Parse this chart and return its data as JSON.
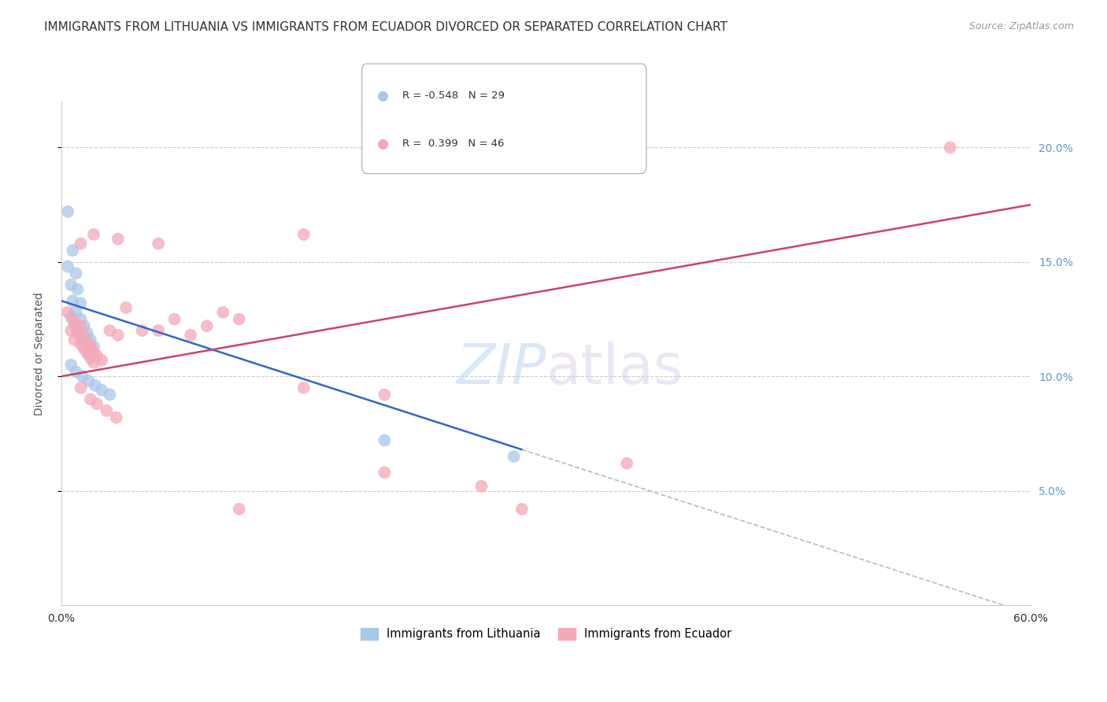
{
  "title": "IMMIGRANTS FROM LITHUANIA VS IMMIGRANTS FROM ECUADOR DIVORCED OR SEPARATED CORRELATION CHART",
  "source": "Source: ZipAtlas.com",
  "ylabel": "Divorced or Separated",
  "xlim": [
    0.0,
    0.6
  ],
  "ylim": [
    0.0,
    0.22
  ],
  "xtick_positions": [
    0.0,
    0.1,
    0.2,
    0.3,
    0.4,
    0.5,
    0.6
  ],
  "xtick_labels": [
    "0.0%",
    "",
    "",
    "",
    "",
    "",
    "60.0%"
  ],
  "yticks_right": [
    0.05,
    0.1,
    0.15,
    0.2
  ],
  "ytick_right_labels": [
    "5.0%",
    "10.0%",
    "15.0%",
    "20.0%"
  ],
  "watermark_text": "ZIPatlas",
  "lithuania_color": "#a8c8e8",
  "ecuador_color": "#f4a8b8",
  "lithuania_line_color": "#3366cc",
  "ecuador_line_color": "#cc4466",
  "dash_color": "#bbbbbb",
  "legend_lit_color": "#a8c8e8",
  "legend_ecu_color": "#f4a8b8",
  "lithuania_scatter": [
    [
      0.004,
      0.172
    ],
    [
      0.007,
      0.155
    ],
    [
      0.004,
      0.148
    ],
    [
      0.009,
      0.145
    ],
    [
      0.006,
      0.14
    ],
    [
      0.01,
      0.138
    ],
    [
      0.007,
      0.133
    ],
    [
      0.012,
      0.132
    ],
    [
      0.009,
      0.128
    ],
    [
      0.006,
      0.126
    ],
    [
      0.012,
      0.125
    ],
    [
      0.008,
      0.123
    ],
    [
      0.014,
      0.122
    ],
    [
      0.01,
      0.12
    ],
    [
      0.016,
      0.119
    ],
    [
      0.012,
      0.117
    ],
    [
      0.018,
      0.116
    ],
    [
      0.014,
      0.114
    ],
    [
      0.02,
      0.113
    ],
    [
      0.016,
      0.111
    ],
    [
      0.006,
      0.105
    ],
    [
      0.009,
      0.102
    ],
    [
      0.013,
      0.1
    ],
    [
      0.017,
      0.098
    ],
    [
      0.021,
      0.096
    ],
    [
      0.025,
      0.094
    ],
    [
      0.03,
      0.092
    ],
    [
      0.2,
      0.072
    ],
    [
      0.28,
      0.065
    ]
  ],
  "ecuador_scatter": [
    [
      0.004,
      0.128
    ],
    [
      0.007,
      0.125
    ],
    [
      0.009,
      0.123
    ],
    [
      0.012,
      0.122
    ],
    [
      0.006,
      0.12
    ],
    [
      0.01,
      0.119
    ],
    [
      0.014,
      0.118
    ],
    [
      0.008,
      0.116
    ],
    [
      0.016,
      0.115
    ],
    [
      0.012,
      0.114
    ],
    [
      0.018,
      0.113
    ],
    [
      0.014,
      0.112
    ],
    [
      0.02,
      0.111
    ],
    [
      0.016,
      0.11
    ],
    [
      0.022,
      0.109
    ],
    [
      0.018,
      0.108
    ],
    [
      0.025,
      0.107
    ],
    [
      0.02,
      0.106
    ],
    [
      0.03,
      0.12
    ],
    [
      0.035,
      0.118
    ],
    [
      0.04,
      0.13
    ],
    [
      0.05,
      0.12
    ],
    [
      0.06,
      0.12
    ],
    [
      0.07,
      0.125
    ],
    [
      0.08,
      0.118
    ],
    [
      0.09,
      0.122
    ],
    [
      0.1,
      0.128
    ],
    [
      0.11,
      0.125
    ],
    [
      0.012,
      0.158
    ],
    [
      0.02,
      0.162
    ],
    [
      0.035,
      0.16
    ],
    [
      0.06,
      0.158
    ],
    [
      0.15,
      0.162
    ],
    [
      0.15,
      0.095
    ],
    [
      0.2,
      0.092
    ],
    [
      0.012,
      0.095
    ],
    [
      0.018,
      0.09
    ],
    [
      0.022,
      0.088
    ],
    [
      0.028,
      0.085
    ],
    [
      0.034,
      0.082
    ],
    [
      0.2,
      0.058
    ],
    [
      0.26,
      0.052
    ],
    [
      0.35,
      0.062
    ],
    [
      0.55,
      0.2
    ],
    [
      0.11,
      0.042
    ],
    [
      0.285,
      0.042
    ]
  ],
  "lit_trend_start_x": 0.0,
  "lit_trend_solid_end_x": 0.285,
  "lit_trend_dash_end_x": 0.6,
  "ecu_trend_start_x": 0.0,
  "ecu_trend_end_x": 0.6,
  "background_color": "#ffffff",
  "grid_color": "#cccccc",
  "title_fontsize": 11,
  "axis_label_fontsize": 10,
  "tick_fontsize": 10,
  "source_fontsize": 9
}
